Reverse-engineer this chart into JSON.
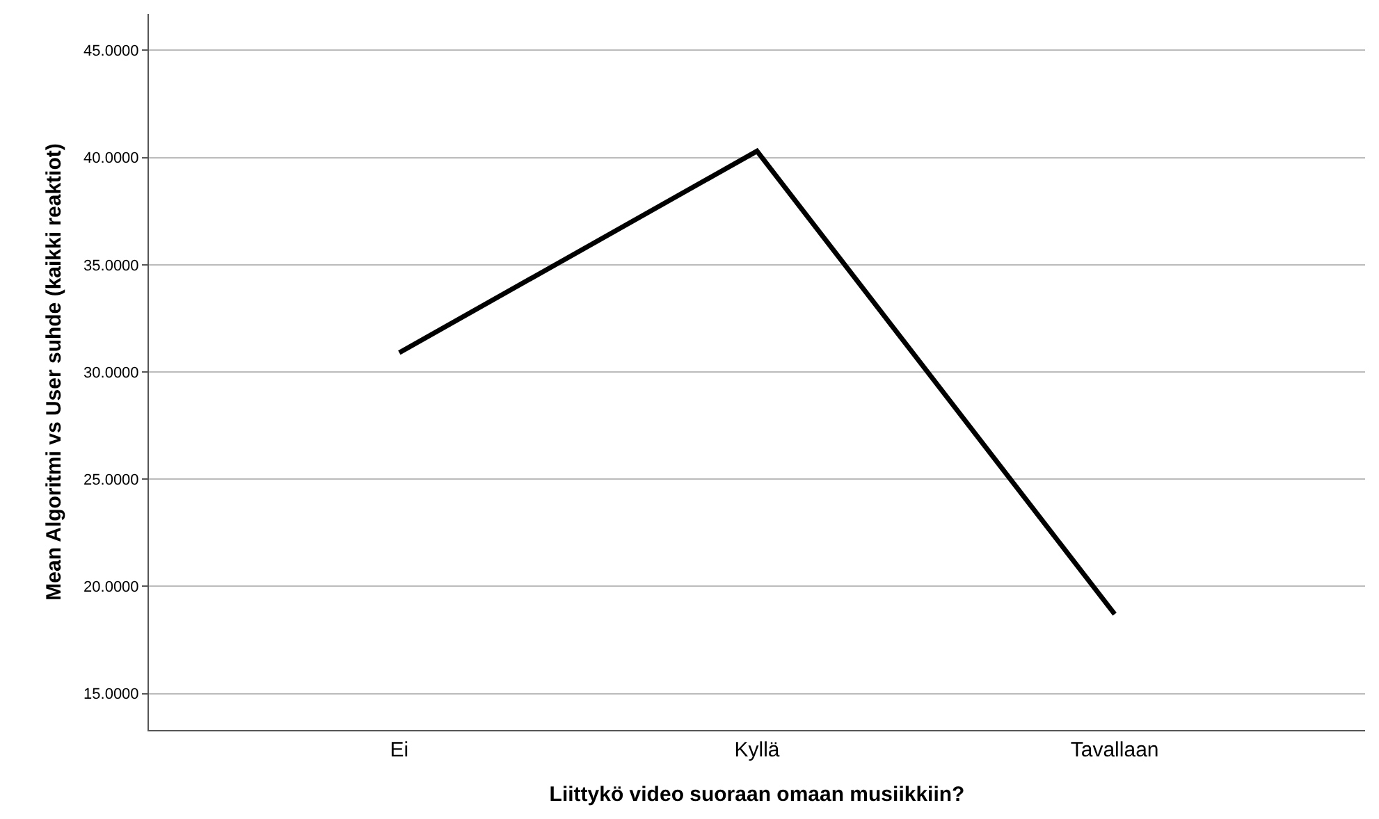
{
  "chart_data": {
    "type": "line",
    "xlabel": "Liittykö video suoraan omaan musiikkiin?",
    "ylabel": "Mean Algoritmi vs User suhde (kaikki reaktiot)",
    "categories": [
      "Ei",
      "Kyllä",
      "Tavallaan"
    ],
    "series": [
      {
        "color": "#000000",
        "values": [
          30.9,
          40.3,
          18.7
        ]
      }
    ],
    "ylim": [
      13.3,
      46.7
    ],
    "yticks": [
      {
        "value": 15,
        "label": "15.0000"
      },
      {
        "value": 20,
        "label": "20.0000"
      },
      {
        "value": 25,
        "label": "25.0000"
      },
      {
        "value": 30,
        "label": "30.0000"
      },
      {
        "value": 35,
        "label": "35.0000"
      },
      {
        "value": 40,
        "label": "40.0000"
      },
      {
        "value": 45,
        "label": "45.0000"
      }
    ],
    "grid": "y",
    "marker": "none",
    "line_style": "solid"
  }
}
